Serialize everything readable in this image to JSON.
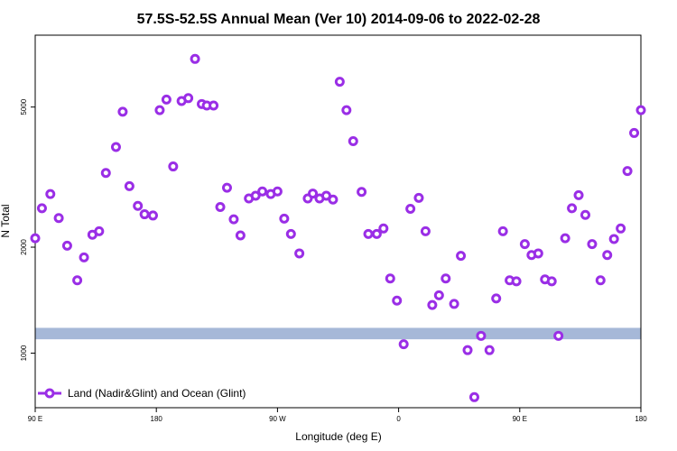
{
  "chart_data": {
    "type": "scatter",
    "title": "57.5S-52.5S Annual Mean (Ver 10)   2014-09-06 to 2022-02-28",
    "xlabel": "Longitude (deg E)",
    "ylabel": "N Total",
    "x_ticks": [
      "90 E",
      "180",
      "90 W",
      "0",
      "90 E",
      "180"
    ],
    "y_ticks": [
      {
        "value": 1000,
        "label": "1000"
      },
      {
        "value": 2000,
        "label": "2000"
      },
      {
        "value": 5000,
        "label": "5000"
      }
    ],
    "ylim_log": [
      700,
      8000
    ],
    "xlim_index": [
      0,
      360
    ],
    "band": {
      "color": "#a6b8d8",
      "y_low": 1095,
      "y_high": 1180
    },
    "series": [
      {
        "name": "Land (Nadir&Glint) and Ocean (Glint)",
        "color": "#9a2ee6",
        "x": [
          0,
          4,
          9,
          14,
          19,
          25,
          29,
          34,
          38,
          42,
          48,
          52,
          56,
          61,
          65,
          70,
          74,
          78,
          82,
          87,
          91,
          95,
          99,
          102,
          106,
          110,
          114,
          118,
          122,
          127,
          131,
          135,
          140,
          144,
          148,
          152,
          157,
          162,
          165,
          169,
          173,
          177,
          181,
          185,
          189,
          194,
          198,
          203,
          207,
          211,
          215,
          219,
          223,
          228,
          232,
          236,
          240,
          244,
          249,
          253,
          257,
          261,
          265,
          270,
          274,
          278,
          282,
          286,
          291,
          295,
          299,
          303,
          307,
          311,
          315,
          319,
          323,
          327,
          331,
          336,
          340,
          344,
          348,
          352,
          356,
          360
        ],
        "y": [
          2120,
          2580,
          2830,
          2420,
          2020,
          1610,
          1870,
          2170,
          2220,
          3250,
          3850,
          4850,
          2980,
          2620,
          2480,
          2460,
          4900,
          5250,
          3390,
          5200,
          5300,
          6850,
          5100,
          5050,
          5050,
          2600,
          2950,
          2400,
          2160,
          2750,
          2800,
          2880,
          2830,
          2880,
          2410,
          2180,
          1920,
          2750,
          2840,
          2750,
          2800,
          2730,
          5900,
          4900,
          4000,
          2870,
          2180,
          2180,
          2260,
          1630,
          1410,
          1060,
          2570,
          2760,
          2220,
          1370,
          1460,
          1630,
          1380,
          1890,
          1020,
          750,
          1120,
          1020,
          1430,
          2220,
          1610,
          1600,
          2040,
          1900,
          1920,
          1620,
          1600,
          1120,
          2120,
          2580,
          2810,
          2470,
          2040,
          1610,
          1900,
          2110,
          2260,
          3290,
          4220,
          4900
        ]
      }
    ]
  }
}
